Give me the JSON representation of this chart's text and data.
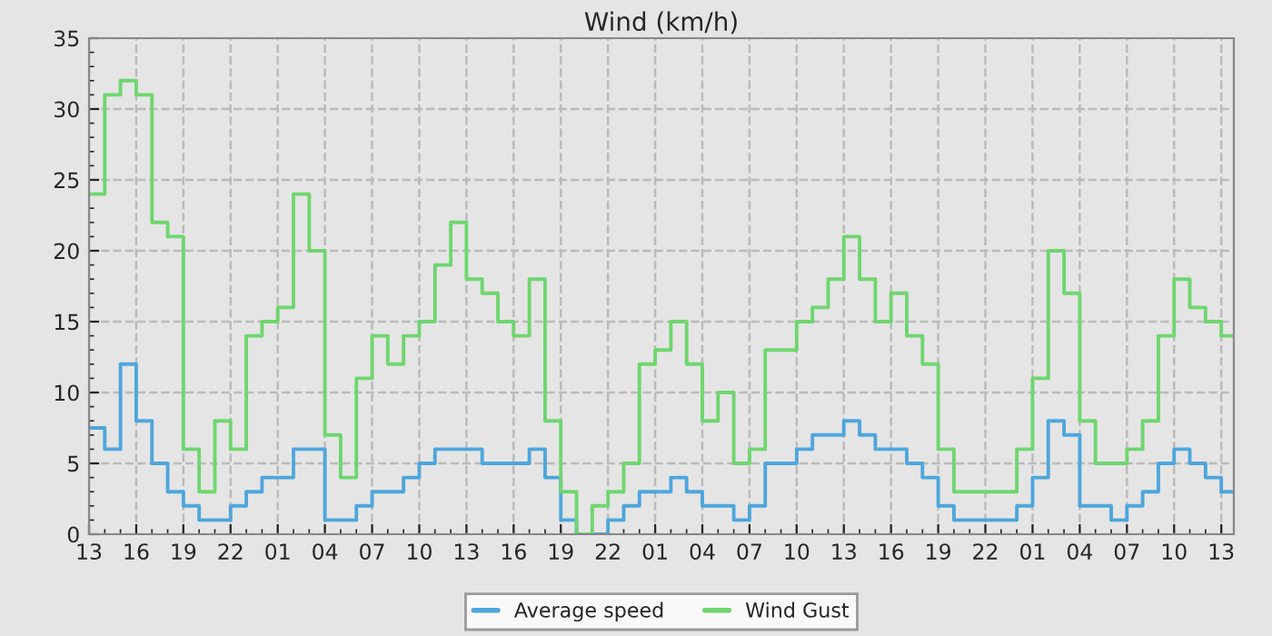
{
  "chart_data": {
    "type": "step",
    "title": "Wind (km/h)",
    "categories": [
      "13",
      null,
      null,
      "16",
      null,
      null,
      "19",
      null,
      null,
      "22",
      null,
      null,
      "01",
      null,
      null,
      "04",
      null,
      null,
      "07",
      null,
      null,
      "10",
      null,
      null,
      "13",
      null,
      null,
      "16",
      null,
      null,
      "19",
      null,
      null,
      "22",
      null,
      null,
      "01",
      null,
      null,
      "04",
      null,
      null,
      "07",
      null,
      null,
      "10",
      null,
      null,
      "13",
      null,
      null,
      "16",
      null,
      null,
      "19",
      null,
      null,
      "22",
      null,
      null,
      "01",
      null,
      null,
      "04",
      null,
      null,
      "07",
      null,
      null,
      "10",
      null,
      null,
      "13"
    ],
    "series": [
      {
        "name": "Average speed",
        "color": "#4ea6dc",
        "values": [
          7.5,
          6,
          12,
          8,
          5,
          3,
          2,
          1,
          1,
          2,
          3,
          4,
          4,
          6,
          6,
          1,
          1,
          2,
          3,
          3,
          4,
          5,
          6,
          6,
          6,
          5,
          5,
          5,
          6,
          4,
          1,
          0,
          0,
          1,
          2,
          3,
          3,
          4,
          3,
          2,
          2,
          1,
          2,
          5,
          5,
          6,
          7,
          7,
          8,
          7,
          6,
          6,
          5,
          4,
          2,
          1,
          1,
          1,
          1,
          2,
          4,
          8,
          7,
          2,
          2,
          1,
          2,
          3,
          5,
          6,
          5,
          4,
          3
        ]
      },
      {
        "name": "Wind Gust",
        "color": "#6fd66f",
        "values": [
          24,
          31,
          32,
          31,
          22,
          21,
          6,
          3,
          8,
          6,
          14,
          15,
          16,
          24,
          20,
          7,
          4,
          11,
          14,
          12,
          14,
          15,
          19,
          22,
          18,
          17,
          15,
          14,
          18,
          8,
          3,
          0,
          2,
          3,
          5,
          12,
          13,
          15,
          12,
          8,
          10,
          5,
          6,
          13,
          13,
          15,
          16,
          18,
          21,
          18,
          15,
          17,
          14,
          12,
          6,
          3,
          3,
          3,
          3,
          6,
          11,
          20,
          17,
          8,
          5,
          5,
          6,
          8,
          14,
          18,
          16,
          15,
          14
        ]
      }
    ],
    "ylim": [
      0,
      35
    ],
    "yticks": [
      0,
      5,
      10,
      15,
      20,
      25,
      30,
      35
    ],
    "grid": true,
    "legend": "bottom",
    "line_style": "solid",
    "marker": "none"
  }
}
